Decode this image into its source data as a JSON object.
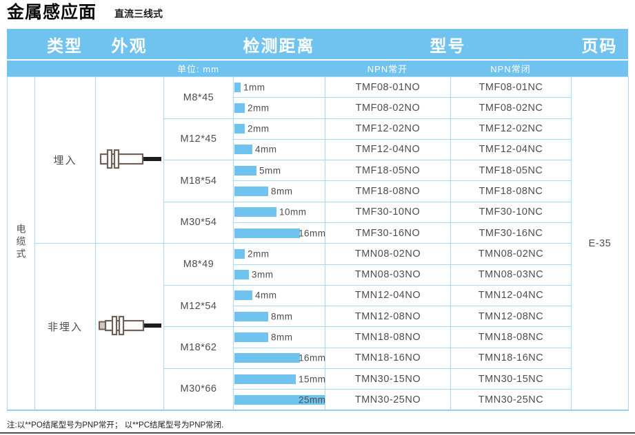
{
  "page": {
    "title": "金属感应面",
    "subtitle": "直流三线式",
    "footnote": "注:以**PO结尾型号为PNP常开； 以**PC结尾型号为PNP常闭.",
    "page_code": "E-35"
  },
  "colors": {
    "band_blue": "#6FC3EE",
    "bar_blue": "#6FC3EE",
    "grid_blue": "#A6DBF5",
    "text_gray": "#4d4d4d"
  },
  "table": {
    "headers": {
      "type": "类型",
      "appearance": "外观",
      "distance": "检测距离",
      "model": "型号",
      "page": "页码"
    },
    "subheaders": {
      "unit": "单位: mm",
      "no": "NPN常开",
      "nc": "NPN常闭"
    },
    "cable_type": "电缆式",
    "groups": [
      {
        "mount": "埋入",
        "appearance_icon": "sensor-flush-icon",
        "sizes": [
          {
            "size": "M8*45",
            "rows": [
              {
                "distance_mm": 1,
                "distance_label": "1mm",
                "no": "TMF08-01NO",
                "nc": "TMF08-01NC"
              },
              {
                "distance_mm": 2,
                "distance_label": "2mm",
                "no": "TMF08-02NO",
                "nc": "TMF08-02NC"
              }
            ]
          },
          {
            "size": "M12*45",
            "rows": [
              {
                "distance_mm": 2,
                "distance_label": "2mm",
                "no": "TMF12-02NO",
                "nc": "TMF12-02NC"
              },
              {
                "distance_mm": 4,
                "distance_label": "4mm",
                "no": "TMF12-04NO",
                "nc": "TMF12-04NC"
              }
            ]
          },
          {
            "size": "M18*54",
            "rows": [
              {
                "distance_mm": 5,
                "distance_label": "5mm",
                "no": "TMF18-05NO",
                "nc": "TMF18-05NC"
              },
              {
                "distance_mm": 8,
                "distance_label": "8mm",
                "no": "TMF18-08NO",
                "nc": "TMF18-08NC"
              }
            ]
          },
          {
            "size": "M30*54",
            "rows": [
              {
                "distance_mm": 10,
                "distance_label": "10mm",
                "no": "TMF30-10NO",
                "nc": "TMF30-10NC"
              },
              {
                "distance_mm": 16,
                "distance_label": "16mm",
                "no": "TMF30-16NO",
                "nc": "TMF30-16NC"
              }
            ]
          }
        ]
      },
      {
        "mount": "非埋入",
        "appearance_icon": "sensor-nonflush-icon",
        "sizes": [
          {
            "size": "M8*49",
            "rows": [
              {
                "distance_mm": 2,
                "distance_label": "2mm",
                "no": "TMN08-02NO",
                "nc": "TMN08-02NC"
              },
              {
                "distance_mm": 3,
                "distance_label": "3mm",
                "no": "TMN08-03NO",
                "nc": "TMN08-03NC"
              }
            ]
          },
          {
            "size": "M12*54",
            "rows": [
              {
                "distance_mm": 4,
                "distance_label": "4mm",
                "no": "TMN12-04NO",
                "nc": "TMN12-04NC"
              },
              {
                "distance_mm": 8,
                "distance_label": "8mm",
                "no": "TMN12-08NO",
                "nc": "TMN12-08NC"
              }
            ]
          },
          {
            "size": "M18*62",
            "rows": [
              {
                "distance_mm": 8,
                "distance_label": "8mm",
                "no": "TMN18-08NO",
                "nc": "TMN18-08NC"
              },
              {
                "distance_mm": 16,
                "distance_label": "16mm",
                "no": "TMN18-16NO",
                "nc": "TMN18-16NC"
              }
            ]
          },
          {
            "size": "M30*66",
            "rows": [
              {
                "distance_mm": 15,
                "distance_label": "15mm",
                "no": "TMN30-15NO",
                "nc": "TMN30-15NC"
              },
              {
                "distance_mm": 25,
                "distance_label": "25mm",
                "no": "TMN30-25NO",
                "nc": "TMN30-25NC"
              }
            ]
          }
        ]
      }
    ]
  }
}
